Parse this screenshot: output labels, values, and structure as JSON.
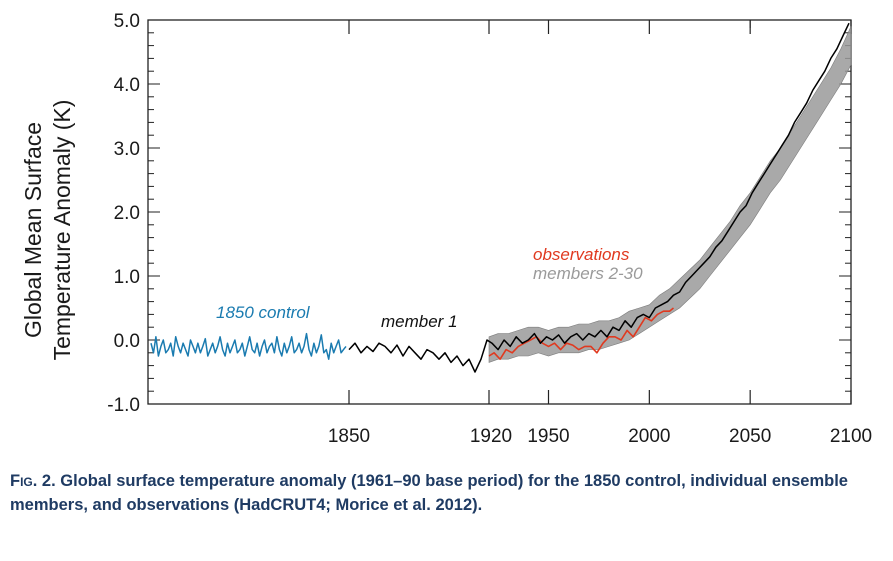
{
  "chart_data": {
    "type": "line",
    "title": "",
    "ylabel_lines": [
      "Global Mean Surface",
      "Temperature Anomaly (K)"
    ],
    "ylim": [
      -1.0,
      5.0
    ],
    "y_ticks": [
      "5.0",
      "4.0",
      "3.0",
      "2.0",
      "1.0",
      "0.0",
      "-1.0"
    ],
    "x_tick_labels": [
      "1850",
      "1920",
      "1950",
      "2000",
      "2050",
      "2100"
    ],
    "grid": false,
    "series": [
      {
        "name": "1850 control",
        "color": "#1a7bb0",
        "segment": "control",
        "values": [
          -0.05,
          -0.2,
          0.05,
          -0.25,
          -0.1,
          0.0,
          -0.2,
          -0.15,
          -0.05,
          -0.25,
          0.05,
          -0.1,
          -0.2,
          -0.05,
          -0.15,
          -0.25,
          0.0,
          -0.1,
          -0.2,
          -0.05,
          -0.2,
          -0.1,
          0.02,
          -0.25,
          -0.15,
          -0.05,
          -0.2,
          -0.1,
          0.05,
          -0.15,
          -0.25,
          -0.05,
          -0.2,
          -0.1,
          0.0,
          -0.2,
          -0.15,
          -0.05,
          -0.25,
          -0.1,
          0.05,
          -0.15,
          -0.2,
          -0.05,
          -0.25,
          -0.1,
          0.0,
          -0.2,
          -0.1,
          -0.05,
          -0.2,
          0.05,
          -0.15,
          -0.25,
          -0.05,
          -0.2,
          -0.1,
          0.05,
          -0.2,
          -0.15,
          -0.05,
          -0.2,
          -0.1,
          0.1,
          -0.15,
          -0.25,
          -0.05,
          -0.2,
          -0.1,
          0.08,
          -0.2,
          -0.15,
          -0.3,
          -0.05,
          -0.2,
          -0.1,
          0.0,
          -0.2,
          -0.15,
          -0.1
        ]
      },
      {
        "name": "member 1",
        "color": "#000000",
        "segment": "historical",
        "x": [
          1850,
          1853,
          1856,
          1859,
          1862,
          1865,
          1868,
          1871,
          1874,
          1877,
          1880,
          1883,
          1886,
          1889,
          1892,
          1895,
          1898,
          1901,
          1904,
          1907,
          1910,
          1913,
          1916,
          1919,
          1922,
          1925,
          1928,
          1931,
          1934,
          1937,
          1940,
          1943,
          1946,
          1949,
          1952,
          1955,
          1958,
          1961,
          1964,
          1967,
          1970,
          1973,
          1976,
          1979,
          1982,
          1985,
          1988,
          1991,
          1994,
          1997,
          2000,
          2003,
          2006,
          2009,
          2012,
          2015,
          2018,
          2021,
          2024,
          2027,
          2030,
          2033,
          2036,
          2039,
          2042,
          2045,
          2048,
          2051,
          2054,
          2057,
          2060,
          2063,
          2066,
          2069,
          2072,
          2075,
          2078,
          2081,
          2084,
          2087,
          2090,
          2093,
          2096,
          2099
        ],
        "values": [
          -0.15,
          -0.05,
          -0.2,
          -0.1,
          -0.18,
          -0.05,
          -0.1,
          -0.2,
          -0.08,
          -0.25,
          -0.1,
          -0.2,
          -0.3,
          -0.15,
          -0.2,
          -0.3,
          -0.2,
          -0.35,
          -0.25,
          -0.4,
          -0.3,
          -0.5,
          -0.3,
          0.0,
          -0.05,
          -0.15,
          0.0,
          -0.1,
          0.05,
          -0.05,
          0.0,
          0.1,
          -0.05,
          0.05,
          0.0,
          0.08,
          -0.05,
          0.05,
          0.1,
          0.0,
          0.1,
          0.05,
          0.15,
          0.05,
          0.2,
          0.15,
          0.3,
          0.2,
          0.35,
          0.4,
          0.35,
          0.5,
          0.55,
          0.6,
          0.7,
          0.75,
          0.9,
          1.0,
          1.1,
          1.2,
          1.3,
          1.45,
          1.55,
          1.7,
          1.85,
          2.0,
          2.1,
          2.3,
          2.45,
          2.6,
          2.75,
          2.9,
          3.05,
          3.2,
          3.4,
          3.55,
          3.7,
          3.9,
          4.05,
          4.2,
          4.4,
          4.55,
          4.75,
          4.95
        ]
      },
      {
        "name": "members 2-30",
        "color": "#9a9a9a",
        "x": [
          1920,
          1925,
          1930,
          1935,
          1940,
          1945,
          1950,
          1955,
          1960,
          1965,
          1970,
          1975,
          1980,
          1985,
          1990,
          1995,
          2000,
          2005,
          2010,
          2015,
          2020,
          2025,
          2030,
          2035,
          2040,
          2045,
          2050,
          2055,
          2060,
          2065,
          2070,
          2075,
          2080,
          2085,
          2090,
          2095,
          2100
        ],
        "low": [
          -0.35,
          -0.3,
          -0.3,
          -0.25,
          -0.25,
          -0.2,
          -0.25,
          -0.2,
          -0.2,
          -0.2,
          -0.15,
          -0.15,
          -0.1,
          -0.05,
          0.0,
          0.1,
          0.2,
          0.3,
          0.4,
          0.5,
          0.65,
          0.8,
          1.0,
          1.2,
          1.4,
          1.6,
          1.8,
          2.05,
          2.3,
          2.5,
          2.75,
          3.0,
          3.25,
          3.5,
          3.75,
          4.0,
          4.3
        ],
        "high": [
          0.05,
          0.1,
          0.1,
          0.15,
          0.2,
          0.2,
          0.15,
          0.2,
          0.2,
          0.25,
          0.25,
          0.3,
          0.3,
          0.35,
          0.45,
          0.5,
          0.55,
          0.7,
          0.8,
          0.95,
          1.1,
          1.25,
          1.45,
          1.65,
          1.85,
          2.1,
          2.3,
          2.55,
          2.8,
          3.0,
          3.25,
          3.5,
          3.75,
          4.0,
          4.25,
          4.55,
          4.9
        ]
      },
      {
        "name": "observations",
        "color": "#e0391f",
        "x": [
          1920,
          1923,
          1926,
          1929,
          1932,
          1935,
          1938,
          1941,
          1944,
          1947,
          1950,
          1953,
          1956,
          1959,
          1962,
          1965,
          1968,
          1971,
          1974,
          1977,
          1980,
          1983,
          1986,
          1989,
          1992,
          1995,
          1998,
          2001,
          2004,
          2007,
          2010,
          2012
        ],
        "values": [
          -0.25,
          -0.2,
          -0.3,
          -0.15,
          -0.2,
          -0.1,
          -0.05,
          0.0,
          0.05,
          -0.05,
          -0.1,
          -0.05,
          -0.15,
          -0.05,
          -0.08,
          -0.15,
          -0.1,
          -0.1,
          -0.2,
          -0.05,
          0.05,
          0.05,
          0.0,
          0.15,
          0.05,
          0.2,
          0.35,
          0.3,
          0.4,
          0.45,
          0.45,
          0.5
        ]
      }
    ]
  },
  "annotations": {
    "control": "1850 control",
    "member1": "member 1",
    "observations": "observations",
    "members": "members 2-30"
  },
  "caption": {
    "label": "Fig. 2.",
    "text": "Global surface temperature anomaly (1961–90 base period) for the 1850 control, individual ensemble members, and observations (HadCRUT4; Morice et al. 2012)."
  }
}
